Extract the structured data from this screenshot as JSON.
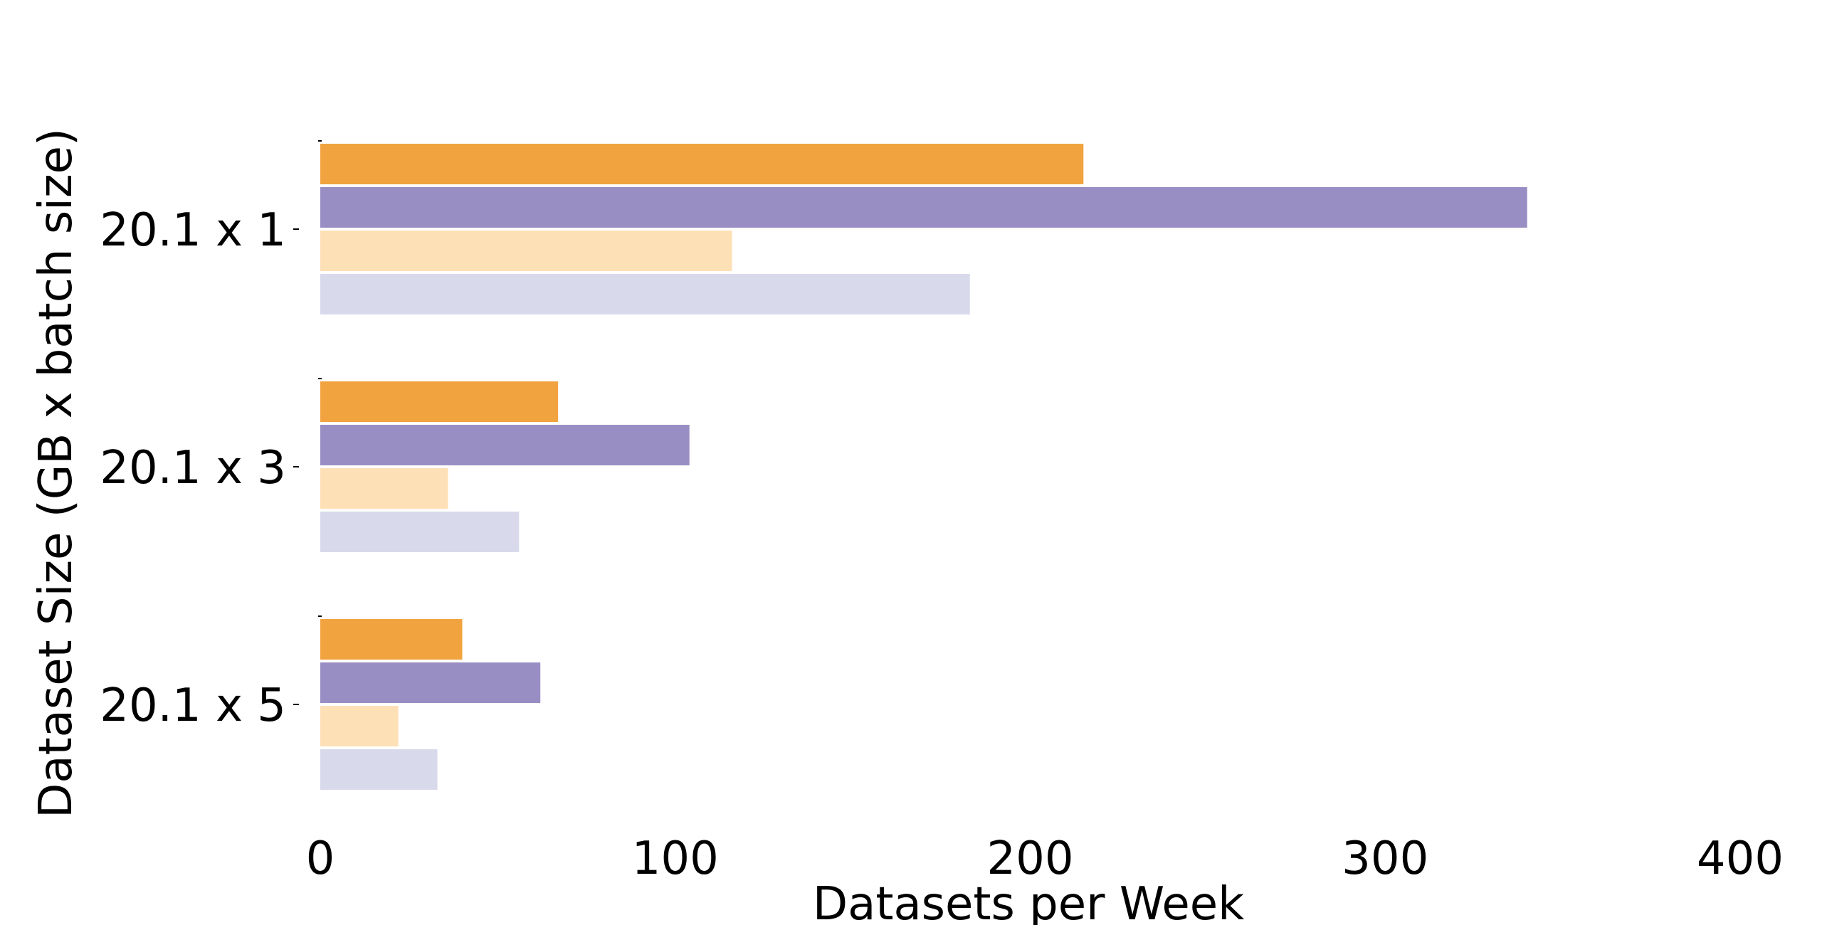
{
  "chart_data": {
    "type": "bar",
    "orientation": "horizontal",
    "title": "",
    "xlabel": "Datasets per Week",
    "ylabel": "Dataset Size (GB x batch size)",
    "categories": [
      "20.1 x 1",
      "20.1 x 3",
      "20.1 x 5"
    ],
    "xlim": [
      0,
      400
    ],
    "xticks": [
      "0",
      "100",
      "200",
      "300",
      "400"
    ],
    "grid": false,
    "legend": "none",
    "series": [
      {
        "color": "#f1a340",
        "values": [
          215,
          67,
          40
        ]
      },
      {
        "color": "#998ec3",
        "values": [
          340,
          104,
          62
        ]
      },
      {
        "color": "#fee0b6",
        "values": [
          116,
          36,
          22
        ]
      },
      {
        "color": "#d8daeb",
        "values": [
          183,
          56,
          33
        ]
      }
    ]
  }
}
